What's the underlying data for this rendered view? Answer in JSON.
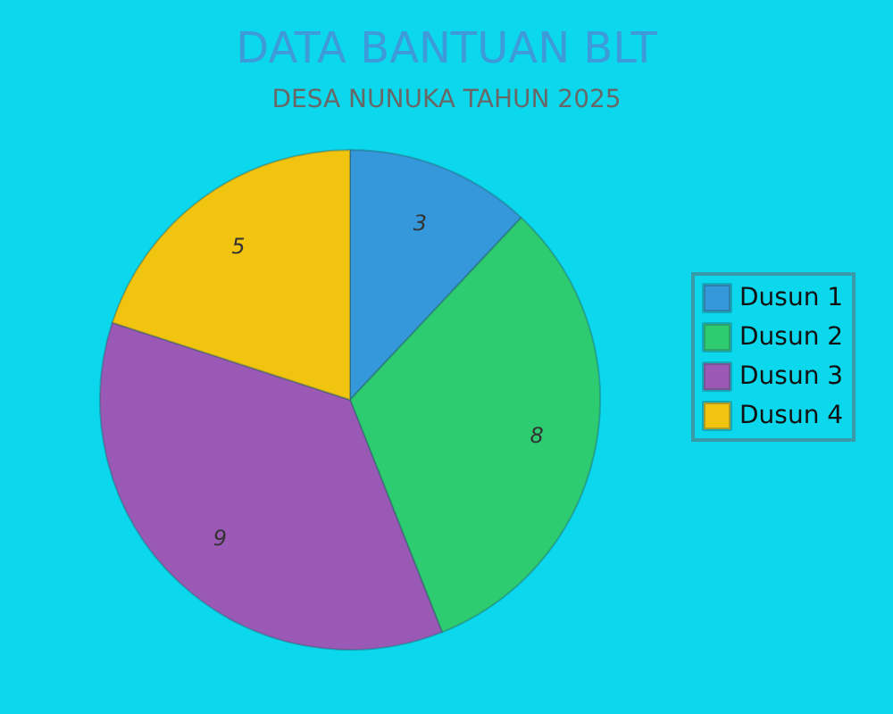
{
  "chart_data": {
    "type": "pie",
    "title": "DATA BANTUAN BLT",
    "subtitle": "DESA NUNUKA TAHUN 2025",
    "categories": [
      "Dusun 1",
      "Dusun 2",
      "Dusun 3",
      "Dusun 4"
    ],
    "values": [
      3,
      8,
      9,
      5
    ],
    "colors": [
      "#3498db",
      "#2ecc71",
      "#9b59b6",
      "#f1c40f"
    ],
    "data_labels": true,
    "legend": "right"
  }
}
